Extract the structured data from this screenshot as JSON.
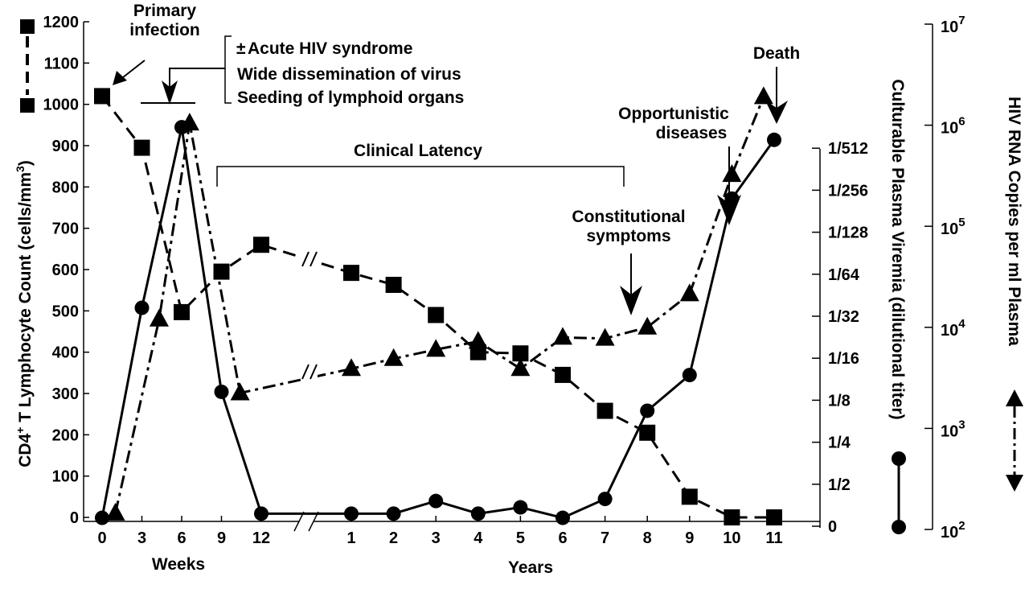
{
  "chart_data": {
    "type": "line",
    "x_segments": {
      "weeks": {
        "label": "Weeks",
        "ticks": [
          0,
          3,
          6,
          9,
          12
        ]
      },
      "years": {
        "label": "Years",
        "ticks": [
          1,
          2,
          3,
          4,
          5,
          6,
          7,
          8,
          9,
          10,
          11
        ]
      }
    },
    "axes": {
      "left": {
        "label_main": "CD4",
        "label_sup": "+",
        "label_rest": " T Lymphocyte Count (cells/mm",
        "label_sup2": "3",
        "label_end": ")",
        "ylim": [
          0,
          1200
        ],
        "ticks": [
          0,
          100,
          200,
          300,
          400,
          500,
          600,
          700,
          800,
          900,
          1000,
          1100,
          1200
        ]
      },
      "viremia": {
        "label": "Culturable Plasma Viremia (dilutional titer)",
        "ticks": [
          "0",
          "1/2",
          "1/4",
          "1/8",
          "1/16",
          "1/32",
          "1/64",
          "1/128",
          "1/256",
          "1/512"
        ]
      },
      "rna": {
        "label": "HIV RNA Copies per ml Plasma",
        "scale": "log10",
        "ylim_exponent": [
          2,
          7
        ],
        "ticks": [
          {
            "base": "10",
            "exp": "2"
          },
          {
            "base": "10",
            "exp": "3"
          },
          {
            "base": "10",
            "exp": "4"
          },
          {
            "base": "10",
            "exp": "5"
          },
          {
            "base": "10",
            "exp": "6"
          },
          {
            "base": "10",
            "exp": "7"
          }
        ]
      }
    },
    "series": [
      {
        "name": "CD4+ T lymphocyte count",
        "marker": "square",
        "style": "dashed",
        "axis": "left",
        "points": [
          [
            "weeks",
            0,
            1020
          ],
          [
            "weeks",
            3,
            895
          ],
          [
            "weeks",
            6,
            497
          ],
          [
            "weeks",
            9,
            595
          ],
          [
            "weeks",
            12,
            660
          ],
          [
            "years",
            1,
            592
          ],
          [
            "years",
            2,
            563
          ],
          [
            "years",
            3,
            490
          ],
          [
            "years",
            4,
            400
          ],
          [
            "years",
            5,
            397
          ],
          [
            "years",
            6,
            345
          ],
          [
            "years",
            7,
            258
          ],
          [
            "years",
            8,
            205
          ],
          [
            "years",
            9,
            50
          ],
          [
            "years",
            10,
            0
          ],
          [
            "years",
            11,
            0
          ]
        ]
      },
      {
        "name": "Culturable plasma viremia (titer index, 0=0, 1=1/2 ... 9=1/512)",
        "marker": "circle",
        "style": "solid",
        "axis": "viremia",
        "points": [
          [
            "weeks",
            0,
            0.2
          ],
          [
            "weeks",
            3,
            5.2
          ],
          [
            "weeks",
            6,
            9.5
          ],
          [
            "weeks",
            9,
            3.2
          ],
          [
            "weeks",
            12,
            0.3
          ],
          [
            "years",
            1,
            0.3
          ],
          [
            "years",
            2,
            0.3
          ],
          [
            "years",
            3,
            0.6
          ],
          [
            "years",
            4,
            0.3
          ],
          [
            "years",
            5,
            0.45
          ],
          [
            "years",
            6,
            0.2
          ],
          [
            "years",
            7,
            0.65
          ],
          [
            "years",
            8,
            2.75
          ],
          [
            "years",
            9,
            3.6
          ],
          [
            "years",
            10,
            7.8
          ],
          [
            "years",
            11,
            9.2
          ]
        ]
      },
      {
        "name": "HIV RNA copies per ml plasma (log10)",
        "marker": "triangle",
        "style": "dashdot",
        "axis": "rna",
        "points": [
          [
            "weeks",
            1,
            2.16
          ],
          [
            "weeks",
            4.3,
            4.08
          ],
          [
            "weeks",
            6.6,
            6.02
          ],
          [
            "weeks",
            10.4,
            3.35
          ],
          [
            "years",
            1,
            3.59
          ],
          [
            "years",
            2,
            3.69
          ],
          [
            "years",
            3,
            3.78
          ],
          [
            "years",
            4,
            3.86
          ],
          [
            "years",
            5,
            3.59
          ],
          [
            "years",
            6,
            3.9
          ],
          [
            "years",
            7,
            3.89
          ],
          [
            "years",
            8,
            4.0
          ],
          [
            "years",
            9,
            4.33
          ],
          [
            "years",
            10,
            5.51
          ],
          [
            "years",
            10.75,
            6.28
          ]
        ]
      }
    ],
    "annotations": {
      "primary_infection": [
        "Primary",
        "infection"
      ],
      "acute": {
        "pm": "±",
        "lines": [
          "Acute HIV syndrome",
          "Wide dissemination of virus",
          "Seeding of lymphoid organs"
        ]
      },
      "clinical_latency": "Clinical Latency",
      "constitutional": [
        "Constitutional",
        "symptoms"
      ],
      "opportunistic": [
        "Opportunistic",
        "diseases"
      ],
      "death": "Death"
    }
  }
}
